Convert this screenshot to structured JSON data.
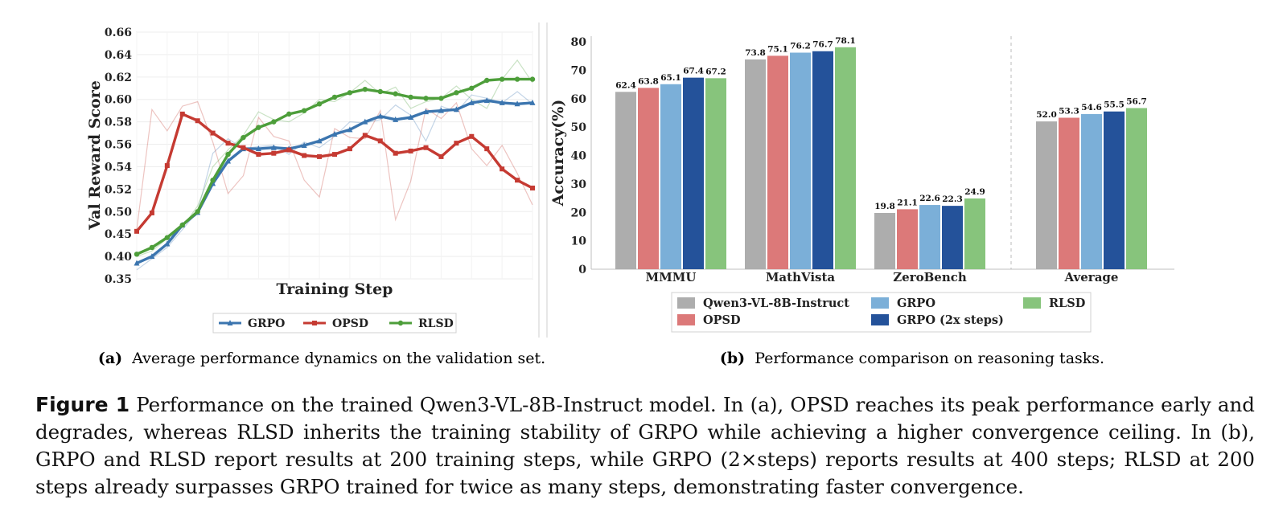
{
  "chart_data": [
    {
      "type": "line",
      "panel": "(a)",
      "caption_label": "(a)",
      "caption_text": "Average performance dynamics on the validation set.",
      "xlabel": "Training Step",
      "ylabel": "Val Reward Score",
      "ylim": [
        0.35,
        0.66
      ],
      "y_ticks": [
        "0.35",
        "0.40",
        "0.45",
        "0.50",
        "0.52",
        "0.54",
        "0.56",
        "0.58",
        "0.60",
        "0.62",
        "0.64",
        "0.66"
      ],
      "grid": true,
      "legend_position": "bottom",
      "series": [
        {
          "name": "GRPO",
          "color": "#3b75af",
          "marker": "triangle",
          "values": [
            0.385,
            0.4,
            0.428,
            0.47,
            0.498,
            0.525,
            0.545,
            0.556,
            0.556,
            0.557,
            0.556,
            0.559,
            0.563,
            0.569,
            0.573,
            0.58,
            0.585,
            0.582,
            0.584,
            0.589,
            0.59,
            0.591,
            0.597,
            0.599,
            0.597,
            0.596,
            0.597
          ],
          "raw": [
            0.37,
            0.395,
            0.42,
            0.46,
            0.5,
            0.552,
            0.565,
            0.556,
            0.558,
            0.559,
            0.551,
            0.562,
            0.557,
            0.567,
            0.58,
            0.579,
            0.582,
            0.595,
            0.586,
            0.563,
            0.594,
            0.589,
            0.604,
            0.601,
            0.597,
            0.607,
            0.596
          ]
        },
        {
          "name": "OPSD",
          "color": "#c53a32",
          "marker": "square",
          "values": [
            0.456,
            0.497,
            0.541,
            0.587,
            0.581,
            0.57,
            0.561,
            0.557,
            0.551,
            0.552,
            0.555,
            0.55,
            0.549,
            0.551,
            0.556,
            0.568,
            0.563,
            0.552,
            0.554,
            0.557,
            0.549,
            0.561,
            0.567,
            0.556,
            0.538,
            0.528,
            0.521
          ],
          "raw": [
            0.46,
            0.591,
            0.572,
            0.594,
            0.598,
            0.562,
            0.516,
            0.532,
            0.584,
            0.567,
            0.563,
            0.528,
            0.513,
            0.574,
            0.566,
            0.565,
            0.59,
            0.482,
            0.527,
            0.592,
            0.583,
            0.597,
            0.556,
            0.541,
            0.559,
            0.534,
            0.506
          ]
        },
        {
          "name": "RLSD",
          "color": "#4d9e3a",
          "marker": "circle",
          "values": [
            0.405,
            0.42,
            0.442,
            0.47,
            0.5,
            0.528,
            0.551,
            0.566,
            0.575,
            0.58,
            0.587,
            0.59,
            0.596,
            0.602,
            0.606,
            0.609,
            0.607,
            0.605,
            0.602,
            0.601,
            0.601,
            0.606,
            0.61,
            0.617,
            0.618,
            0.618,
            0.618
          ],
          "raw": [
            0.4,
            0.412,
            0.44,
            0.465,
            0.505,
            0.54,
            0.555,
            0.568,
            0.589,
            0.582,
            0.58,
            0.588,
            0.6,
            0.598,
            0.606,
            0.617,
            0.605,
            0.611,
            0.592,
            0.598,
            0.601,
            0.612,
            0.6,
            0.592,
            0.618,
            0.635,
            0.615
          ]
        }
      ]
    },
    {
      "type": "bar",
      "panel": "(b)",
      "caption_label": "(b)",
      "caption_text": "Performance comparison on reasoning tasks.",
      "ylabel": "Accuracy(%)",
      "ylim": [
        0,
        82
      ],
      "y_ticks": [
        0,
        10,
        20,
        30,
        40,
        50,
        60,
        70,
        80
      ],
      "categories": [
        "MMMU",
        "MathVista",
        "ZeroBench",
        "Average"
      ],
      "legend_position": "bottom",
      "series": [
        {
          "name": "Qwen3-VL-8B-Instruct",
          "color": "#adadad",
          "values": [
            62.4,
            73.8,
            19.8,
            52.0
          ],
          "labels": [
            "62.4",
            "73.8",
            "19.8",
            "52.0"
          ]
        },
        {
          "name": "OPSD",
          "color": "#dc7979",
          "values": [
            63.8,
            75.1,
            21.1,
            53.3
          ],
          "labels": [
            "63.8",
            "75.1",
            "21.1",
            "53.3"
          ]
        },
        {
          "name": "GRPO",
          "color": "#7bafd8",
          "values": [
            65.1,
            76.2,
            22.6,
            54.6
          ],
          "labels": [
            "65.1",
            "76.2",
            "22.6",
            "54.6"
          ]
        },
        {
          "name": "GRPO (2x steps)",
          "color": "#24529a",
          "values": [
            67.4,
            76.7,
            22.3,
            55.5
          ],
          "labels": [
            "67.4",
            "76.7",
            "22.3",
            "55.5"
          ]
        },
        {
          "name": "RLSD",
          "color": "#87c47c",
          "values": [
            67.2,
            78.1,
            24.9,
            56.7
          ],
          "labels": [
            "67.2",
            "78.1",
            "24.9",
            "56.7"
          ]
        }
      ]
    }
  ],
  "caption": {
    "label": "Figure 1",
    "text": "Performance on the trained Qwen3-VL-8B-Instruct model. In (a), OPSD reaches its peak performance early and degrades, whereas RLSD inherits the training stability of GRPO while achieving a higher convergence ceiling. In (b), GRPO and RLSD report results at 200 training steps, while GRPO (2×steps) reports results at 400 steps; RLSD at 200 steps already surpasses GRPO trained for twice as many steps, demonstrating faster convergence."
  }
}
